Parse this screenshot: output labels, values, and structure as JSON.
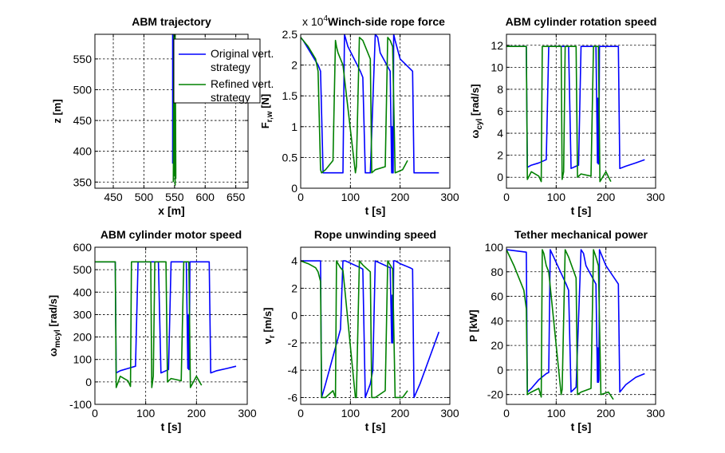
{
  "chart_data": [
    {
      "type": "line",
      "title": "ABM trajectory",
      "xlabel": "x [m]",
      "ylabel": "z [m]",
      "xlim": [
        420,
        670
      ],
      "ylim": [
        340,
        590
      ],
      "xticks": [
        450,
        500,
        550,
        600,
        650
      ],
      "yticks": [
        350,
        400,
        450,
        500,
        550
      ],
      "grid": true,
      "legend": {
        "placement": "top-right",
        "entries": [
          {
            "label": "Original vert.",
            "label2": "strategy",
            "color": "#0000ff"
          },
          {
            "label": "Refined vert.",
            "label2": "strategy",
            "color": "#008000"
          }
        ]
      },
      "series": [
        {
          "name": "Original vert. strategy",
          "color": "#0000ff",
          "x": [
            547,
            547,
            548,
            548,
            549,
            549,
            550,
            550
          ],
          "y": [
            380,
            590,
            420,
            585,
            400,
            590,
            430,
            380
          ]
        },
        {
          "name": "Refined vert. strategy",
          "color": "#008000",
          "x": [
            548,
            549,
            550,
            550,
            551,
            551,
            552,
            552
          ],
          "y": [
            350,
            590,
            360,
            588,
            345,
            590,
            370,
            355
          ]
        }
      ]
    },
    {
      "type": "line",
      "title": "Winch-side rope force",
      "exponent_base": "x 10",
      "exponent_power": "4",
      "xlabel": "t [s]",
      "ylabel": "F",
      "ylabel_sub": "r,w",
      "ylabel_unit": " [N]",
      "xlim": [
        0,
        300
      ],
      "ylim": [
        0,
        2.5
      ],
      "xticks": [
        0,
        100,
        200,
        300
      ],
      "yticks": [
        0,
        0.5,
        1,
        1.5,
        2,
        2.5
      ],
      "yticklabels": [
        "0",
        "0.5",
        "1",
        "1.5",
        "2",
        "2.5"
      ],
      "grid": true,
      "series": [
        {
          "name": "Original vert. strategy",
          "color": "#0000ff",
          "x": [
            0,
            5,
            35,
            40,
            45,
            80,
            85,
            88,
            95,
            120,
            125,
            130,
            140,
            150,
            155,
            160,
            180,
            183,
            184,
            185,
            186,
            187,
            190,
            200,
            225,
            228,
            240,
            278
          ],
          "y": [
            2.45,
            2.4,
            2.0,
            1.9,
            0.25,
            0.25,
            0.25,
            2.5,
            2.3,
            1.9,
            1.8,
            0.25,
            0.25,
            2.5,
            2.45,
            2.2,
            1.9,
            0.25,
            1.0,
            0.25,
            0.25,
            2.5,
            2.4,
            2.1,
            1.9,
            0.25,
            0.25,
            0.25
          ]
        },
        {
          "name": "Refined vert. strategy",
          "color": "#008000",
          "x": [
            0,
            15,
            30,
            35,
            40,
            42,
            50,
            65,
            70,
            72,
            75,
            80,
            85,
            110,
            112,
            118,
            125,
            140,
            143,
            150,
            170,
            175,
            180,
            185,
            190,
            205,
            215
          ],
          "y": [
            2.45,
            2.3,
            2.1,
            1.9,
            0.3,
            0.25,
            0.3,
            0.45,
            2.4,
            2.3,
            2.2,
            2.1,
            2.0,
            0.25,
            0.35,
            2.45,
            2.4,
            2.1,
            0.25,
            0.3,
            0.35,
            2.45,
            2.4,
            2.3,
            0.25,
            0.3,
            0.45
          ]
        }
      ]
    },
    {
      "type": "line",
      "title": "ABM cylinder rotation speed",
      "xlabel": "t [s]",
      "ylabel": "ω",
      "ylabel_sub": "cyl",
      "ylabel_unit": " [rad/s]",
      "xlim": [
        0,
        300
      ],
      "ylim": [
        -1,
        13
      ],
      "xticks": [
        0,
        100,
        200,
        300
      ],
      "yticks": [
        0,
        2,
        4,
        6,
        8,
        10,
        12
      ],
      "grid": true,
      "series": [
        {
          "name": "Original vert. strategy",
          "color": "#0000ff",
          "x": [
            0,
            40,
            42,
            50,
            65,
            80,
            85,
            90,
            120,
            125,
            130,
            140,
            145,
            150,
            180,
            183,
            184,
            185,
            186,
            187,
            190,
            200,
            220,
            225,
            228,
            240,
            260,
            278
          ],
          "y": [
            11.9,
            11.9,
            0.9,
            1.1,
            1.3,
            1.6,
            11.9,
            11.9,
            11.9,
            11.9,
            0.8,
            1.0,
            1.1,
            11.9,
            11.9,
            1.3,
            7.2,
            1.2,
            1.3,
            11.9,
            11.9,
            11.9,
            11.9,
            11.9,
            0.8,
            1.0,
            1.3,
            1.6
          ]
        },
        {
          "name": "Refined vert. strategy",
          "color": "#008000",
          "x": [
            0,
            35,
            40,
            42,
            50,
            65,
            70,
            72,
            80,
            110,
            112,
            115,
            118,
            125,
            140,
            143,
            150,
            170,
            175,
            180,
            185,
            188,
            200,
            210
          ],
          "y": [
            11.9,
            11.9,
            11.9,
            -0.2,
            0.5,
            0.1,
            -0.4,
            11.9,
            11.9,
            11.9,
            -0.2,
            0.5,
            11.9,
            11.9,
            11.9,
            0.0,
            0.3,
            0.1,
            11.9,
            11.9,
            11.9,
            -0.4,
            0.5,
            -0.4
          ]
        }
      ]
    },
    {
      "type": "line",
      "title": "ABM cylinder motor speed",
      "xlabel": "t [s]",
      "ylabel": "ω",
      "ylabel_sub": "mcyl",
      "ylabel_unit": " [rad/s]",
      "xlim": [
        0,
        300
      ],
      "ylim": [
        -100,
        600
      ],
      "xticks": [
        0,
        100,
        200,
        300
      ],
      "yticks": [
        -100,
        0,
        100,
        200,
        300,
        400,
        500,
        600
      ],
      "grid": true,
      "series": [
        {
          "name": "Original vert. strategy",
          "color": "#0000ff",
          "x": [
            0,
            40,
            42,
            50,
            65,
            80,
            85,
            90,
            120,
            125,
            130,
            140,
            145,
            150,
            180,
            183,
            184,
            185,
            186,
            187,
            190,
            200,
            220,
            225,
            228,
            240,
            260,
            278
          ],
          "y": [
            535,
            535,
            40,
            50,
            60,
            70,
            535,
            535,
            535,
            535,
            40,
            50,
            55,
            535,
            535,
            60,
            300,
            55,
            60,
            535,
            535,
            535,
            535,
            535,
            40,
            50,
            60,
            70
          ]
        },
        {
          "name": "Refined vert. strategy",
          "color": "#008000",
          "x": [
            0,
            35,
            40,
            42,
            50,
            65,
            70,
            72,
            80,
            110,
            112,
            115,
            118,
            125,
            140,
            143,
            150,
            170,
            175,
            180,
            185,
            188,
            200,
            210
          ],
          "y": [
            535,
            535,
            535,
            -25,
            25,
            5,
            -20,
            535,
            535,
            535,
            -25,
            25,
            535,
            535,
            535,
            0,
            15,
            5,
            535,
            535,
            535,
            -25,
            25,
            -15
          ]
        }
      ]
    },
    {
      "type": "line",
      "title": "Rope unwinding speed",
      "xlabel": "t [s]",
      "ylabel": "v",
      "ylabel_sub": "r",
      "ylabel_unit": " [m/s]",
      "xlim": [
        0,
        300
      ],
      "ylim": [
        -6.5,
        5
      ],
      "xticks": [
        0,
        100,
        200,
        300
      ],
      "yticks": [
        -6,
        -4,
        -2,
        0,
        2,
        4
      ],
      "grid": true,
      "series": [
        {
          "name": "Original vert. strategy",
          "color": "#0000ff",
          "x": [
            0,
            40,
            42,
            50,
            65,
            80,
            85,
            90,
            120,
            125,
            130,
            140,
            145,
            150,
            180,
            183,
            184,
            185,
            186,
            187,
            190,
            200,
            220,
            225,
            228,
            240,
            260,
            278
          ],
          "y": [
            4,
            4,
            -6,
            -5,
            -3,
            -1,
            4,
            4,
            3.5,
            3.4,
            -6,
            -5,
            -4,
            4,
            3.5,
            -2,
            1.5,
            -2,
            -1,
            4,
            4,
            3.8,
            3.5,
            3.4,
            -6,
            -5,
            -3,
            -1.2
          ]
        },
        {
          "name": "Refined vert. strategy",
          "color": "#008000",
          "x": [
            0,
            15,
            30,
            35,
            40,
            42,
            50,
            65,
            70,
            72,
            75,
            80,
            85,
            110,
            112,
            118,
            125,
            140,
            143,
            150,
            170,
            175,
            180,
            185,
            190,
            205,
            215
          ],
          "y": [
            4,
            3.8,
            3.5,
            3.2,
            2.5,
            -6,
            -6,
            -5.5,
            -6,
            4,
            3.8,
            3.5,
            3.3,
            -6,
            -6,
            4,
            3.7,
            3.2,
            -6,
            -6,
            -5.5,
            4,
            3.7,
            3.4,
            -6,
            -6,
            -5.5
          ]
        }
      ]
    },
    {
      "type": "line",
      "title": "Tether mechanical power",
      "xlabel": "t [s]",
      "ylabel": "P [kW]",
      "xlim": [
        0,
        300
      ],
      "ylim": [
        -28,
        100
      ],
      "xticks": [
        0,
        100,
        200,
        300
      ],
      "yticks": [
        -20,
        0,
        20,
        40,
        60,
        80,
        100
      ],
      "grid": true,
      "series": [
        {
          "name": "Original vert. strategy",
          "color": "#0000ff",
          "x": [
            0,
            40,
            42,
            50,
            65,
            80,
            85,
            88,
            95,
            120,
            125,
            130,
            140,
            150,
            155,
            160,
            180,
            183,
            184,
            185,
            186,
            187,
            190,
            200,
            225,
            228,
            240,
            260,
            278
          ],
          "y": [
            98,
            96,
            -18,
            -15,
            -8,
            -3,
            -2,
            98,
            92,
            70,
            65,
            -18,
            -14,
            98,
            95,
            85,
            70,
            -10,
            18,
            -10,
            -8,
            98,
            95,
            85,
            70,
            -18,
            -12,
            -6,
            -3
          ]
        },
        {
          "name": "Refined vert. strategy",
          "color": "#008000",
          "x": [
            0,
            15,
            30,
            35,
            40,
            42,
            50,
            65,
            70,
            72,
            75,
            80,
            85,
            110,
            112,
            118,
            125,
            140,
            143,
            150,
            170,
            175,
            180,
            185,
            190,
            205,
            215
          ],
          "y": [
            98,
            85,
            70,
            65,
            50,
            -20,
            -18,
            -15,
            -22,
            98,
            95,
            85,
            80,
            -20,
            -16,
            98,
            92,
            75,
            -20,
            -18,
            -15,
            98,
            92,
            85,
            -20,
            -18,
            -24
          ]
        }
      ]
    }
  ]
}
